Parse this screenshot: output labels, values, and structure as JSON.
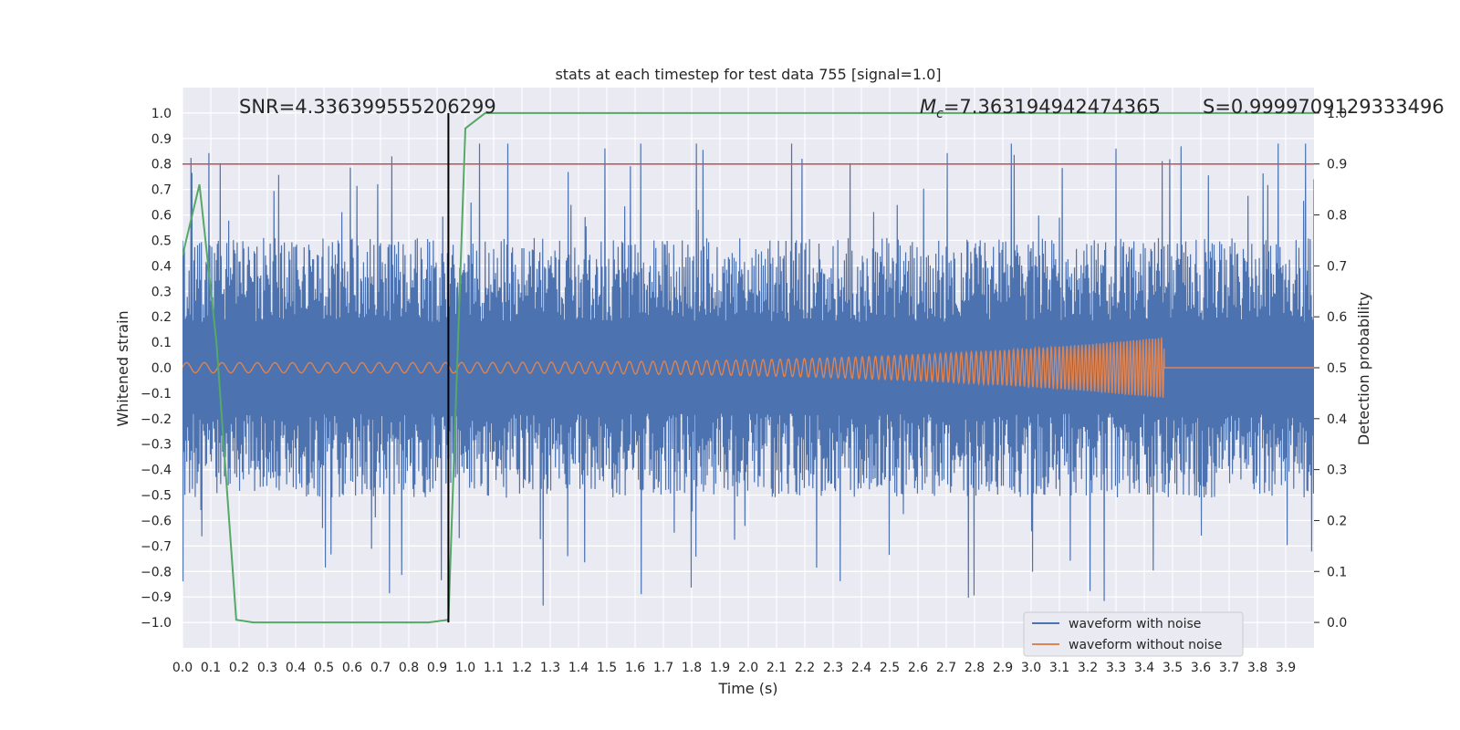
{
  "chart_data": {
    "type": "line",
    "title": "stats at each timestep for test data 755 [signal=1.0]",
    "xlabel": "Time (s)",
    "ylabel": "Whitened strain",
    "ylabel_right": "Detection probability",
    "xlim": [
      0.0,
      4.0
    ],
    "ylim": [
      -1.1,
      1.1
    ],
    "ylim_right": [
      -0.05,
      1.05
    ],
    "x_ticks": [
      "0.0",
      "0.1",
      "0.2",
      "0.3",
      "0.4",
      "0.5",
      "0.6",
      "0.7",
      "0.8",
      "0.9",
      "1.0",
      "1.1",
      "1.2",
      "1.3",
      "1.4",
      "1.5",
      "1.6",
      "1.7",
      "1.8",
      "1.9",
      "2.0",
      "2.1",
      "2.2",
      "2.3",
      "2.4",
      "2.5",
      "2.6",
      "2.7",
      "2.8",
      "2.9",
      "3.0",
      "3.1",
      "3.2",
      "3.3",
      "3.4",
      "3.5",
      "3.6",
      "3.7",
      "3.8",
      "3.9"
    ],
    "y_ticks": [
      "−1.0",
      "−0.9",
      "−0.8",
      "−0.7",
      "−0.6",
      "−0.5",
      "−0.4",
      "−0.3",
      "−0.2",
      "−0.1",
      "0.0",
      "0.1",
      "0.2",
      "0.3",
      "0.4",
      "0.5",
      "0.6",
      "0.7",
      "0.8",
      "0.9",
      "1.0"
    ],
    "y_ticks_right": [
      "0.0",
      "0.1",
      "0.2",
      "0.3",
      "0.4",
      "0.5",
      "0.6",
      "0.7",
      "0.8",
      "0.9",
      "1.0"
    ],
    "grid": true,
    "legend_position": "bottom-right",
    "annotations": {
      "snr": "SNR=4.336399555206299",
      "mc_symbol": "M",
      "mc_sub": "c",
      "mc_value": "=7.363194942474365",
      "s": "S=0.9999709129333496"
    },
    "series": [
      {
        "name": "waveform with noise",
        "color": "#4c72b0",
        "noise_amplitude": 0.33,
        "max": 0.88,
        "min": -0.99
      },
      {
        "name": "waveform without noise",
        "color": "#dd8452",
        "chirp_end_time": 3.47,
        "peak_amplitude": 0.12,
        "start_amplitude": 0.02
      },
      {
        "name": "detection probability",
        "color": "#55a868",
        "axis": "right",
        "x": [
          0.0,
          0.06,
          0.12,
          0.19,
          0.25,
          0.3,
          0.4,
          0.5,
          0.6,
          0.7,
          0.8,
          0.87,
          0.94,
          1.0,
          1.07,
          1.5,
          2.0,
          2.5,
          3.0,
          3.5,
          4.0
        ],
        "y": [
          0.72,
          0.86,
          0.55,
          0.005,
          0.0,
          0.0,
          0.0,
          0.0,
          0.0,
          0.0,
          0.0,
          0.0,
          0.005,
          0.97,
          1.0,
          1.0,
          1.0,
          1.0,
          1.0,
          1.0,
          1.0
        ]
      }
    ],
    "threshold": {
      "value": 0.9,
      "axis": "right",
      "color": "#c44e52"
    },
    "marker_time": {
      "value": 0.94,
      "color": "#000000"
    }
  }
}
